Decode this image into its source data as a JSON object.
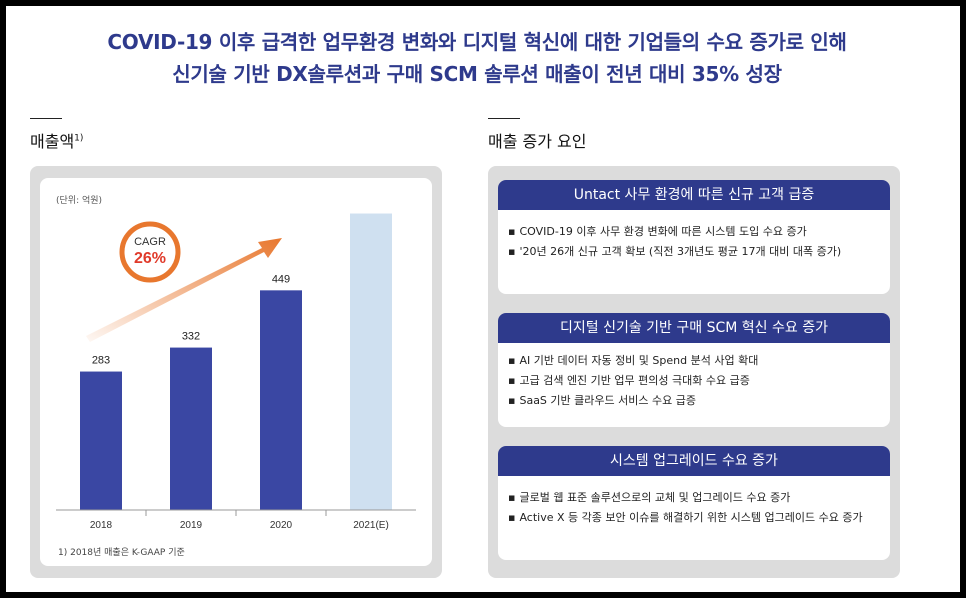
{
  "headline": {
    "line1": "COVID-19 이후 급격한 업무환경 변화와 디지털 혁신에 대한 기업들의 수요 증가로 인해",
    "line2": "신기술 기반 DX솔루션과 구매 SCM 솔루션 매출이 전년 대비 35% 성장"
  },
  "left_section": {
    "title": "매출액",
    "title_sup": "1)"
  },
  "right_section": {
    "title": "매출 증가 요인"
  },
  "chart_data": {
    "type": "bar",
    "unit_label": "(단위: 억원)",
    "categories": [
      "2018",
      "2019",
      "2020",
      "2021(E)"
    ],
    "values": [
      283,
      332,
      449,
      null
    ],
    "value_labels": [
      "283",
      "332",
      "449",
      ""
    ],
    "estimate_value": 606,
    "ylim": [
      0,
      650
    ],
    "bar_color": "#3a47a3",
    "estimate_color": "#cfe0f0",
    "cagr": {
      "label": "CAGR",
      "value": "26%"
    },
    "footnote": "1) 2018년 매출은 K-GAAP 기준"
  },
  "factors": [
    {
      "title": "Untact 사무 환경에 따른 신규 고객 급증",
      "items": [
        "COVID-19 이후 사무 환경 변화에 따른 시스템 도입 수요 증가",
        "'20년 26개 신규 고객 확보 (직전 3개년도 평균 17개 대비 대폭 증가)"
      ]
    },
    {
      "title": "디지털 신기술 기반 구매 SCM 혁신 수요 증가",
      "items": [
        "AI 기반 데이터 자동 정비 및 Spend 분석 사업 확대",
        "고급 검색 엔진 기반 업무 편의성 극대화 수요 급증",
        "SaaS 기반 클라우드 서비스 수요 급증"
      ]
    },
    {
      "title": "시스템 업그레이드 수요 증가",
      "items": [
        "글로벌 웹 표준 솔루션으로의 교체 및 업그레이드 수요 증가",
        "Active X 등 각종 보안 이슈를 해결하기 위한 시스템 업그레이드 수요 증가"
      ]
    }
  ],
  "colors": {
    "navy": "#2e3a8c",
    "orange": "#e8772e",
    "panel_gray": "#dcdcdc"
  }
}
